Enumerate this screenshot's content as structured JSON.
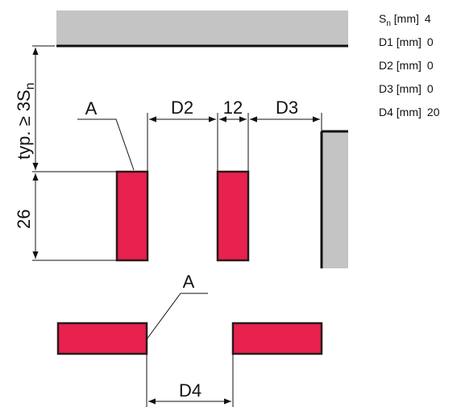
{
  "colors": {
    "sensor_fill": "#e8214f",
    "sensor_stroke": "#2a1a1a",
    "metal_fill": "#c4c4c4",
    "line": "#111111"
  },
  "labels": {
    "typ_prefix": "typ. ≥ 3S",
    "typ_sub": "n",
    "height": "26",
    "a_top": "A",
    "a_bottom": "A",
    "d2": "D2",
    "width": "12",
    "d3": "D3",
    "d4": "D4"
  },
  "params": [
    {
      "sym": "S",
      "sub": "n",
      "unit": " [mm]",
      "value": "4"
    },
    {
      "sym": "D1",
      "sub": "",
      "unit": " [mm]",
      "value": "0"
    },
    {
      "sym": "D2",
      "sub": "",
      "unit": " [mm]",
      "value": "0"
    },
    {
      "sym": "D3",
      "sub": "",
      "unit": " [mm]",
      "value": "0"
    },
    {
      "sym": "D4",
      "sub": "",
      "unit": " [mm]",
      "value": "20"
    }
  ]
}
